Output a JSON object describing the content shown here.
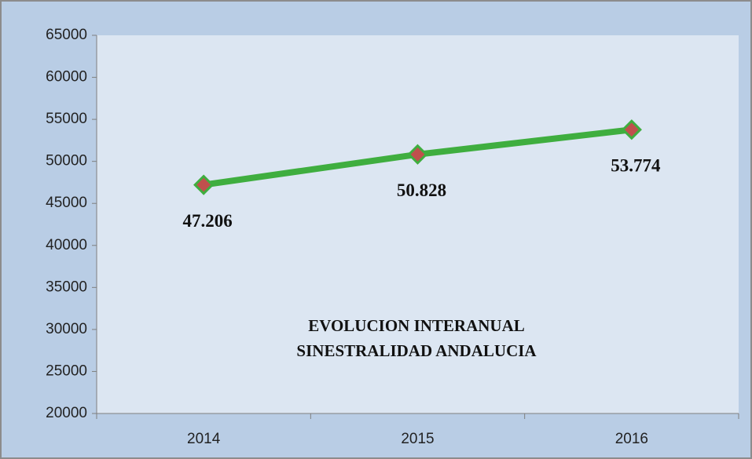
{
  "chart_data": {
    "type": "line",
    "title": [
      "EVOLUCION INTERANUAL",
      "SINESTRALIDAD ANDALUCIA"
    ],
    "categories": [
      "2014",
      "2015",
      "2016"
    ],
    "values": [
      47206,
      50828,
      53774
    ],
    "value_labels": [
      "47.206",
      "50.828",
      "53.774"
    ],
    "color": "#3fae3f",
    "marker_color": "#c0504d",
    "ylim": [
      20000,
      65000
    ],
    "yticks": [
      20000,
      25000,
      30000,
      35000,
      40000,
      45000,
      50000,
      55000,
      60000,
      65000
    ],
    "grid": false
  }
}
